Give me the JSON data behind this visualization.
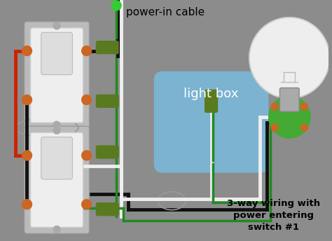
{
  "bg_color": "#8c8c8c",
  "title": "3-way wiring with\npower entering\nswitch #1",
  "label_power_in": "power-in cable",
  "label_light_box": "light box",
  "fig_width": 4.74,
  "fig_height": 3.44,
  "dpi": 100,
  "BLACK": "#111111",
  "WHITE": "#eeeeee",
  "RED": "#cc2200",
  "GREEN": "#228822",
  "LTGREEN": "#33cc33",
  "DKGRN": "#5a7a20",
  "BLUE": "#7ab8d8",
  "ORANGE": "#cc6622",
  "GRAY": "#aaaaaa",
  "LGRAY": "#cccccc"
}
